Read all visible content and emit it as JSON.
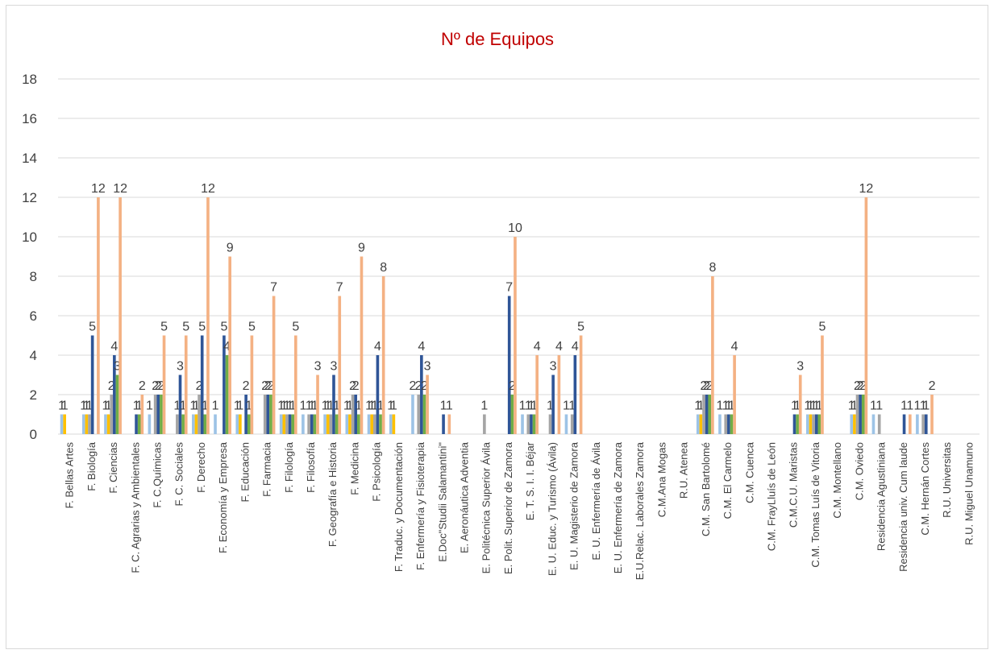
{
  "chart_data": {
    "type": "bar",
    "title": "Nº de Equipos",
    "categories": [
      "F. Bellas Artes",
      "F. Biología",
      "F. Ciencias",
      "F. C. Agrarias y Ambientales",
      "F. C.Químicas",
      "F. C. Sociales",
      "F. Derecho",
      "F. Economía y Empresa",
      "F. Educación",
      "F. Farmacia",
      "F. Filología",
      "F. Filosofía",
      "F. Geografía e Historia",
      "F. Medicina",
      "F. Psicología",
      "F. Traduc. y Documentación",
      "F. Enfermería y Fisioterapia",
      "E.Doc\"Studii Salamantini\"",
      "E. Aeronáutica Adventia",
      "E. Politécnica Superior  Ávila",
      "E. Polit. Superior de Zamora",
      "E. T. S. I. I. Béjar",
      "E. U. Educ. y Turismo (Ávila)",
      "E. U. Magisterio de Zamora",
      "E. U. Enfermería de Ávila",
      "E. U. Enfermería de Zamora",
      "E.U.Relac. Laborales Zamora",
      "C.M.Ana Mogas",
      "R.U. Atenea",
      "C.M. San Bartolomé",
      "C.M. El Carmelo",
      "C.M. Cuenca",
      "C.M. FrayLluís de León",
      "C.M.C.U. Maristas",
      "C.M. Tomas Luís de Vitoria",
      "C.M. Montellano",
      "C.M. Oviedo",
      "Residencia Agustiniana",
      "Residencia univ. Cum laude",
      "C.M. Hernán Cortes",
      "R.U. Universitas",
      "R.U. Miguel Unamuno"
    ],
    "series": [
      {
        "color": "#9dc3e6",
        "values": [
          1,
          1,
          1,
          null,
          1,
          null,
          1,
          1,
          1,
          null,
          1,
          1,
          1,
          1,
          1,
          1,
          2,
          null,
          null,
          null,
          null,
          1,
          null,
          1,
          null,
          null,
          null,
          null,
          null,
          1,
          1,
          null,
          null,
          null,
          1,
          null,
          1,
          1,
          null,
          1,
          null,
          null
        ]
      },
      {
        "color": "#ffc000",
        "values": [
          1,
          1,
          1,
          null,
          null,
          null,
          1,
          null,
          1,
          null,
          1,
          null,
          1,
          1,
          1,
          1,
          null,
          null,
          null,
          null,
          null,
          null,
          null,
          null,
          null,
          null,
          null,
          null,
          null,
          1,
          null,
          null,
          null,
          null,
          1,
          null,
          1,
          null,
          null,
          null,
          null,
          null
        ]
      },
      {
        "color": "#a5a5a5",
        "values": [
          null,
          1,
          2,
          null,
          2,
          1,
          2,
          null,
          null,
          2,
          1,
          1,
          1,
          2,
          1,
          null,
          2,
          null,
          null,
          1,
          null,
          1,
          1,
          1,
          null,
          null,
          null,
          null,
          null,
          2,
          1,
          null,
          null,
          null,
          1,
          null,
          2,
          1,
          null,
          1,
          null,
          null
        ]
      },
      {
        "color": "#2f5597",
        "values": [
          null,
          5,
          4,
          1,
          2,
          3,
          5,
          5,
          2,
          2,
          1,
          1,
          3,
          2,
          4,
          null,
          4,
          1,
          null,
          null,
          7,
          1,
          3,
          4,
          null,
          null,
          null,
          null,
          null,
          2,
          1,
          null,
          null,
          1,
          1,
          null,
          2,
          null,
          1,
          1,
          null,
          null
        ]
      },
      {
        "color": "#70ad47",
        "values": [
          null,
          null,
          3,
          1,
          2,
          1,
          1,
          4,
          1,
          2,
          1,
          1,
          1,
          1,
          1,
          null,
          2,
          null,
          null,
          null,
          2,
          1,
          null,
          null,
          null,
          null,
          null,
          null,
          null,
          2,
          1,
          null,
          null,
          1,
          1,
          null,
          2,
          null,
          null,
          null,
          null,
          null
        ]
      },
      {
        "color": "#f4b183",
        "values": [
          null,
          12,
          12,
          2,
          5,
          5,
          12,
          9,
          5,
          7,
          5,
          3,
          7,
          9,
          8,
          null,
          3,
          1,
          null,
          null,
          10,
          4,
          4,
          5,
          null,
          null,
          null,
          null,
          null,
          8,
          4,
          null,
          null,
          3,
          5,
          null,
          12,
          null,
          1,
          2,
          null,
          null
        ]
      }
    ],
    "ylim": [
      0,
      18
    ],
    "yticks": [
      0,
      2,
      4,
      6,
      8,
      10,
      12,
      14,
      16,
      18
    ],
    "grid": true
  }
}
